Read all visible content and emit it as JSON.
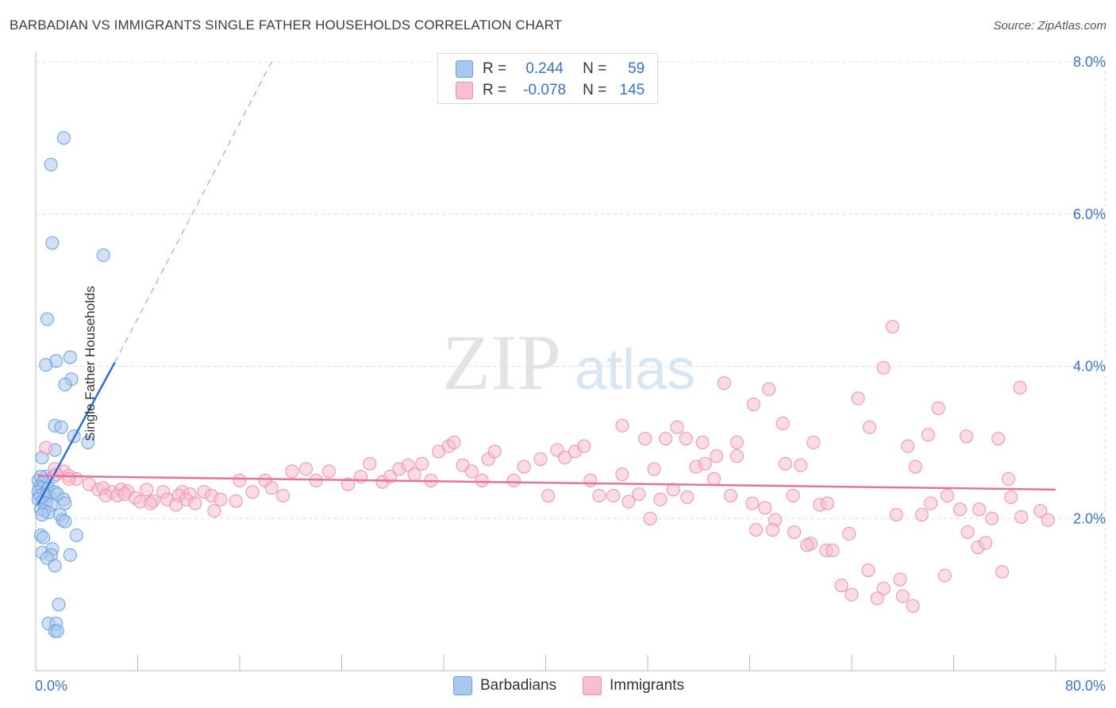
{
  "title": "BARBADIAN VS IMMIGRANTS SINGLE FATHER HOUSEHOLDS CORRELATION CHART",
  "source": "Source: ZipAtlas.com",
  "watermark": {
    "zip": "ZIP",
    "atlas": "atlas"
  },
  "legend_top": [
    {
      "r_label": "R =",
      "r_value": "0.244",
      "n_label": "N =",
      "n_value": "59",
      "color": "#a9c8ee",
      "border": "#6b9edb"
    },
    {
      "r_label": "R =",
      "r_value": "-0.078",
      "n_label": "N =",
      "n_value": "145",
      "color": "#f7bfd0",
      "border": "#ec8fac"
    }
  ],
  "legend_bottom": [
    {
      "label": "Barbadians",
      "color": "#a9c8ee",
      "border": "#6b9edb"
    },
    {
      "label": "Immigrants",
      "color": "#f7bfd0",
      "border": "#ec8fac"
    }
  ],
  "chart_data": {
    "type": "scatter",
    "ylabel": "Single Father Households",
    "xlim": [
      0,
      80
    ],
    "ylim": [
      0,
      8.0
    ],
    "x_tick_labels": [
      "0.0%",
      "80.0%"
    ],
    "y_ticks": [
      2.0,
      4.0,
      6.0,
      8.0
    ],
    "y_tick_labels": [
      "2.0%",
      "4.0%",
      "6.0%",
      "8.0%"
    ],
    "grid": true,
    "series": [
      {
        "name": "Barbadians",
        "color": "#6b9edb",
        "fill": "#a9c8ee",
        "trend": {
          "x0": 0.15,
          "y0": 2.18,
          "x1": 6.2,
          "y1": 4.05,
          "dash_to_x": 18.5,
          "dash_to_y": 8.0,
          "color": "#2f6fd0"
        },
        "points": [
          [
            2.2,
            7.0
          ],
          [
            1.2,
            6.65
          ],
          [
            1.3,
            5.62
          ],
          [
            5.3,
            5.46
          ],
          [
            0.9,
            4.62
          ],
          [
            2.7,
            4.12
          ],
          [
            1.6,
            4.07
          ],
          [
            0.8,
            4.02
          ],
          [
            2.8,
            3.83
          ],
          [
            2.3,
            3.76
          ],
          [
            1.5,
            3.22
          ],
          [
            2.0,
            3.2
          ],
          [
            3.0,
            3.08
          ],
          [
            4.1,
            3.0
          ],
          [
            1.5,
            2.9
          ],
          [
            0.5,
            2.8
          ],
          [
            0.8,
            2.55
          ],
          [
            1.4,
            2.55
          ],
          [
            0.2,
            2.5
          ],
          [
            0.4,
            2.55
          ],
          [
            0.6,
            2.48
          ],
          [
            0.3,
            2.42
          ],
          [
            0.5,
            2.4
          ],
          [
            0.9,
            2.38
          ],
          [
            1.0,
            2.4
          ],
          [
            0.2,
            2.35
          ],
          [
            0.6,
            2.32
          ],
          [
            0.3,
            2.3
          ],
          [
            0.8,
            2.3
          ],
          [
            1.1,
            2.3
          ],
          [
            1.5,
            2.35
          ],
          [
            1.7,
            2.32
          ],
          [
            0.2,
            2.25
          ],
          [
            0.5,
            2.22
          ],
          [
            0.8,
            2.2
          ],
          [
            1.2,
            2.18
          ],
          [
            2.2,
            2.25
          ],
          [
            2.3,
            2.2
          ],
          [
            0.4,
            2.12
          ],
          [
            0.7,
            2.1
          ],
          [
            1.0,
            2.08
          ],
          [
            0.5,
            2.05
          ],
          [
            1.9,
            2.05
          ],
          [
            2.1,
            1.98
          ],
          [
            2.3,
            1.96
          ],
          [
            0.4,
            1.78
          ],
          [
            0.6,
            1.75
          ],
          [
            3.2,
            1.78
          ],
          [
            1.3,
            1.6
          ],
          [
            0.5,
            1.55
          ],
          [
            1.2,
            1.52
          ],
          [
            2.7,
            1.52
          ],
          [
            0.9,
            1.48
          ],
          [
            1.5,
            1.38
          ],
          [
            1.8,
            0.87
          ],
          [
            1.0,
            0.62
          ],
          [
            1.6,
            0.62
          ],
          [
            1.5,
            0.52
          ],
          [
            1.7,
            0.52
          ]
        ]
      },
      {
        "name": "Immigrants",
        "color": "#ec8fac",
        "fill": "#f7bfd0",
        "trend": {
          "x0": 0.15,
          "y0": 2.56,
          "x1": 80,
          "y1": 2.38,
          "color": "#e8739a"
        },
        "points": [
          [
            0.8,
            2.93
          ],
          [
            1.5,
            2.65
          ],
          [
            2.2,
            2.62
          ],
          [
            1.6,
            2.58
          ],
          [
            2.6,
            2.56
          ],
          [
            3.2,
            2.52
          ],
          [
            2.6,
            2.52
          ],
          [
            4.2,
            2.45
          ],
          [
            4.9,
            2.38
          ],
          [
            5.3,
            2.4
          ],
          [
            6.0,
            2.35
          ],
          [
            6.7,
            2.38
          ],
          [
            7.2,
            2.36
          ],
          [
            8.7,
            2.38
          ],
          [
            10.0,
            2.35
          ],
          [
            11.5,
            2.35
          ],
          [
            12.1,
            2.32
          ],
          [
            13.2,
            2.35
          ],
          [
            5.5,
            2.3
          ],
          [
            6.4,
            2.3
          ],
          [
            7.0,
            2.32
          ],
          [
            7.8,
            2.27
          ],
          [
            9.2,
            2.23
          ],
          [
            10.3,
            2.25
          ],
          [
            11.2,
            2.3
          ],
          [
            11.8,
            2.25
          ],
          [
            13.8,
            2.3
          ],
          [
            14.5,
            2.25
          ],
          [
            15.7,
            2.23
          ],
          [
            8.2,
            2.22
          ],
          [
            9.0,
            2.2
          ],
          [
            11.0,
            2.18
          ],
          [
            12.5,
            2.2
          ],
          [
            14.0,
            2.1
          ],
          [
            16.0,
            2.5
          ],
          [
            17.0,
            2.35
          ],
          [
            18.0,
            2.5
          ],
          [
            18.5,
            2.4
          ],
          [
            19.4,
            2.3
          ],
          [
            20.1,
            2.62
          ],
          [
            21.2,
            2.65
          ],
          [
            22.0,
            2.5
          ],
          [
            23.0,
            2.62
          ],
          [
            24.5,
            2.45
          ],
          [
            25.5,
            2.55
          ],
          [
            26.2,
            2.72
          ],
          [
            27.2,
            2.48
          ],
          [
            27.8,
            2.55
          ],
          [
            28.5,
            2.65
          ],
          [
            29.2,
            2.7
          ],
          [
            29.7,
            2.58
          ],
          [
            30.3,
            2.72
          ],
          [
            31.0,
            2.5
          ],
          [
            31.6,
            2.88
          ],
          [
            32.4,
            2.95
          ],
          [
            32.8,
            3.0
          ],
          [
            33.5,
            2.7
          ],
          [
            34.2,
            2.62
          ],
          [
            35.0,
            2.5
          ],
          [
            35.5,
            2.78
          ],
          [
            36.0,
            2.88
          ],
          [
            37.5,
            2.5
          ],
          [
            38.3,
            2.68
          ],
          [
            40.2,
            2.3
          ],
          [
            39.6,
            2.78
          ],
          [
            40.9,
            2.9
          ],
          [
            41.5,
            2.8
          ],
          [
            42.3,
            2.88
          ],
          [
            43.0,
            2.95
          ],
          [
            43.5,
            2.5
          ],
          [
            44.2,
            2.3
          ],
          [
            45.3,
            2.3
          ],
          [
            46.0,
            2.58
          ],
          [
            46.5,
            2.22
          ],
          [
            47.3,
            2.32
          ],
          [
            48.2,
            2.0
          ],
          [
            49.0,
            2.25
          ],
          [
            50.0,
            2.38
          ],
          [
            51.1,
            2.28
          ],
          [
            51.8,
            2.68
          ],
          [
            52.5,
            2.72
          ],
          [
            53.2,
            2.52
          ],
          [
            54.5,
            2.3
          ],
          [
            55.0,
            2.82
          ],
          [
            56.2,
            2.2
          ],
          [
            56.5,
            1.85
          ],
          [
            57.2,
            2.14
          ],
          [
            58.0,
            1.98
          ],
          [
            58.8,
            2.72
          ],
          [
            59.4,
            2.3
          ],
          [
            60.8,
            1.67
          ],
          [
            61.5,
            2.18
          ],
          [
            62.0,
            1.58
          ],
          [
            63.2,
            1.12
          ],
          [
            64.0,
            1.0
          ],
          [
            65.3,
            1.32
          ],
          [
            66.5,
            1.08
          ],
          [
            67.5,
            2.05
          ],
          [
            68.8,
            0.85
          ],
          [
            69.5,
            2.05
          ],
          [
            70.2,
            2.2
          ],
          [
            71.3,
            1.25
          ],
          [
            72.5,
            2.12
          ],
          [
            73.1,
            1.82
          ],
          [
            73.9,
            1.62
          ],
          [
            74.5,
            1.68
          ],
          [
            75.0,
            2.0
          ],
          [
            75.8,
            1.3
          ],
          [
            76.5,
            2.28
          ],
          [
            77.3,
            2.02
          ],
          [
            46.0,
            3.22
          ],
          [
            47.8,
            3.05
          ],
          [
            48.5,
            2.65
          ],
          [
            49.4,
            3.05
          ],
          [
            50.3,
            3.2
          ],
          [
            51.0,
            3.05
          ],
          [
            52.3,
            3.0
          ],
          [
            53.4,
            2.82
          ],
          [
            54.0,
            3.78
          ],
          [
            55.0,
            3.0
          ],
          [
            56.3,
            3.5
          ],
          [
            57.5,
            3.7
          ],
          [
            58.6,
            3.25
          ],
          [
            60.0,
            2.7
          ],
          [
            61.0,
            3.0
          ],
          [
            62.1,
            2.2
          ],
          [
            64.5,
            3.58
          ],
          [
            65.4,
            3.2
          ],
          [
            66.5,
            3.98
          ],
          [
            67.2,
            4.52
          ],
          [
            68.4,
            2.95
          ],
          [
            69.0,
            2.68
          ],
          [
            70.0,
            3.1
          ],
          [
            70.8,
            3.45
          ],
          [
            71.5,
            2.3
          ],
          [
            73.0,
            3.08
          ],
          [
            74.0,
            2.12
          ],
          [
            75.5,
            3.05
          ],
          [
            76.3,
            2.52
          ],
          [
            77.2,
            3.72
          ],
          [
            78.8,
            2.1
          ],
          [
            79.4,
            1.98
          ],
          [
            62.5,
            1.58
          ],
          [
            59.5,
            1.82
          ],
          [
            57.8,
            1.85
          ],
          [
            60.5,
            1.65
          ],
          [
            63.8,
            1.8
          ],
          [
            66.0,
            0.95
          ],
          [
            67.8,
            1.2
          ],
          [
            68.0,
            0.98
          ]
        ]
      }
    ]
  }
}
